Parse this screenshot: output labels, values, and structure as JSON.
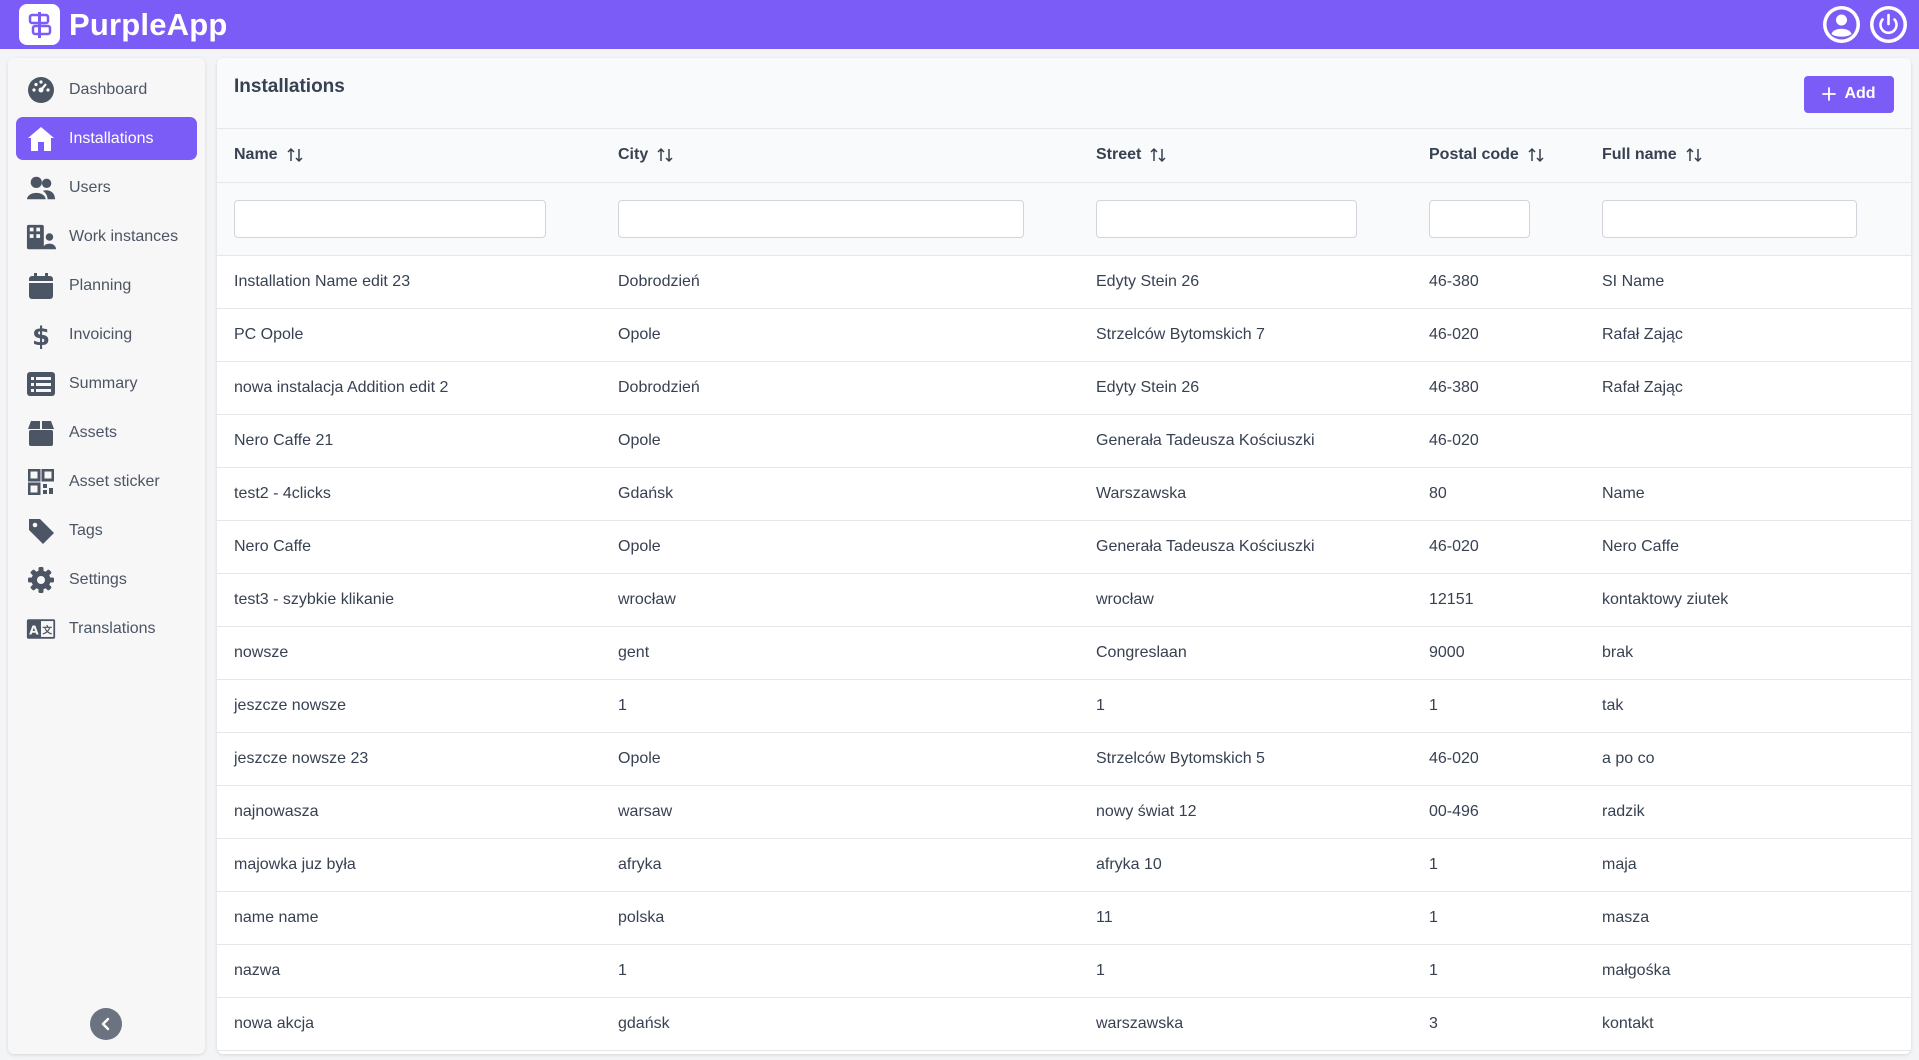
{
  "app": {
    "name": "PurpleApp"
  },
  "colors": {
    "accent": "#7c5cf6",
    "text": "#374151",
    "muted": "#6b7280"
  },
  "header_icons": [
    "user-circle-icon",
    "power-icon"
  ],
  "sidebar": {
    "items": [
      {
        "label": "Dashboard",
        "icon": "gauge-icon",
        "active": false
      },
      {
        "label": "Installations",
        "icon": "house-icon",
        "active": true
      },
      {
        "label": "Users",
        "icon": "users-icon",
        "active": false
      },
      {
        "label": "Work instances",
        "icon": "building-user-icon",
        "active": false
      },
      {
        "label": "Planning",
        "icon": "calendar-icon",
        "active": false
      },
      {
        "label": "Invoicing",
        "icon": "dollar-icon",
        "active": false
      },
      {
        "label": "Summary",
        "icon": "list-icon",
        "active": false
      },
      {
        "label": "Assets",
        "icon": "box-icon",
        "active": false
      },
      {
        "label": "Asset sticker",
        "icon": "qr-code-icon",
        "active": false
      },
      {
        "label": "Tags",
        "icon": "tag-icon",
        "active": false
      },
      {
        "label": "Settings",
        "icon": "gear-icon",
        "active": false
      },
      {
        "label": "Translations",
        "icon": "language-icon",
        "active": false
      }
    ]
  },
  "page": {
    "title": "Installations",
    "add_label": "Add"
  },
  "table": {
    "columns": [
      "Name",
      "City",
      "Street",
      "Postal code",
      "Full name"
    ],
    "rows": [
      [
        "Installation Name edit 23",
        "Dobrodzień",
        "Edyty Stein 26",
        "46-380",
        "SI Name"
      ],
      [
        "PC Opole",
        "Opole",
        "Strzelców Bytomskich 7",
        "46-020",
        "Rafał Zając"
      ],
      [
        "nowa instalacja Addition edit 2",
        "Dobrodzień",
        "Edyty Stein 26",
        "46-380",
        "Rafał Zając"
      ],
      [
        "Nero Caffe 21",
        "Opole",
        "Generała Tadeusza Kościuszki",
        "46-020",
        ""
      ],
      [
        "test2 - 4clicks",
        "Gdańsk",
        "Warszawska",
        "80",
        "Name"
      ],
      [
        "Nero Caffe",
        "Opole",
        "Generała Tadeusza Kościuszki",
        "46-020",
        "Nero Caffe"
      ],
      [
        "test3 - szybkie klikanie",
        "wrocław",
        "wrocław",
        "12151",
        "kontaktowy ziutek"
      ],
      [
        "nowsze",
        "gent",
        "Congreslaan",
        "9000",
        "brak"
      ],
      [
        "jeszcze nowsze",
        "1",
        "1",
        "1",
        "tak"
      ],
      [
        "jeszcze nowsze 23",
        "Opole",
        "Strzelców Bytomskich 5",
        "46-020",
        "a po co"
      ],
      [
        "najnowasza",
        "warsaw",
        "nowy świat 12",
        "00-496",
        "radzik"
      ],
      [
        "majowka juz była",
        "afryka",
        "afryka 10",
        "1",
        "maja"
      ],
      [
        "name name",
        "polska",
        "11",
        "1",
        "masza"
      ],
      [
        "nazwa",
        "1",
        "1",
        "1",
        "małgośka"
      ],
      [
        "nowa akcja",
        "gdańsk",
        "warszawska",
        "3",
        "kontakt"
      ]
    ]
  }
}
